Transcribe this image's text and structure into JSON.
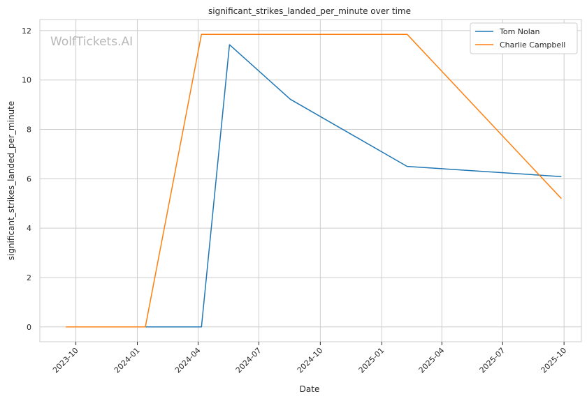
{
  "watermark": "WolfTickets.AI",
  "chart_data": {
    "type": "line",
    "title": "significant_strikes_landed_per_minute over time",
    "xlabel": "Date",
    "ylabel": "significant_strikes_landed_per_minute",
    "x_ticks": [
      "2023-10",
      "2024-01",
      "2024-04",
      "2024-07",
      "2024-10",
      "2025-01",
      "2025-04",
      "2025-07",
      "2025-10"
    ],
    "y_ticks": [
      0,
      2,
      4,
      6,
      8,
      10,
      12
    ],
    "xlim": [
      "2023-08-08",
      "2025-10-27"
    ],
    "ylim": [
      -0.6,
      12.45
    ],
    "grid": true,
    "legend_position": "top-right",
    "series": [
      {
        "name": "Tom Nolan",
        "color": "#1f77b4",
        "points": [
          {
            "x": "2024-01-13",
            "y": 0
          },
          {
            "x": "2024-04-06",
            "y": 0
          },
          {
            "x": "2024-05-18",
            "y": 11.43
          },
          {
            "x": "2024-08-17",
            "y": 9.22
          },
          {
            "x": "2025-02-08",
            "y": 6.5
          },
          {
            "x": "2025-09-27",
            "y": 6.09
          }
        ]
      },
      {
        "name": "Charlie Campbell",
        "color": "#ff7f0e",
        "points": [
          {
            "x": "2023-09-16",
            "y": 0
          },
          {
            "x": "2024-01-13",
            "y": 0
          },
          {
            "x": "2024-04-06",
            "y": 11.85
          },
          {
            "x": "2025-02-08",
            "y": 11.85
          },
          {
            "x": "2025-09-27",
            "y": 5.2
          }
        ]
      }
    ]
  }
}
